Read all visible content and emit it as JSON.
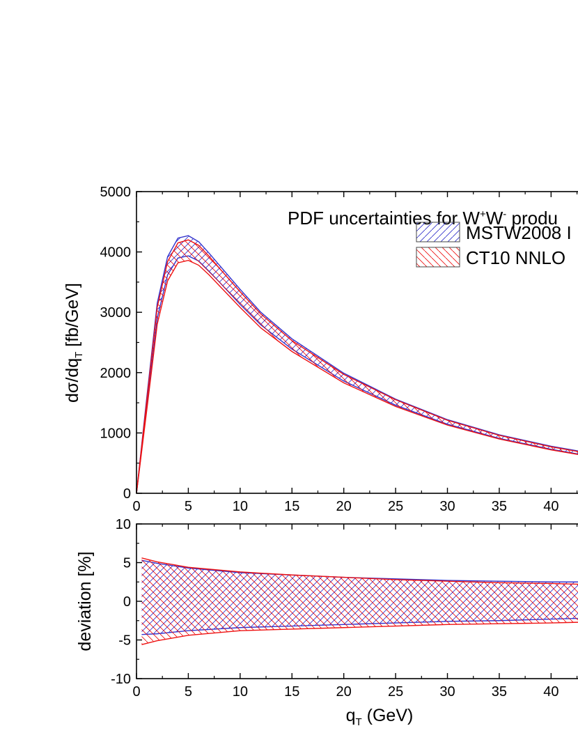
{
  "chart_data": [
    {
      "type": "area",
      "panel": "top",
      "title_main": "PDF uncertainties for W",
      "title_sup1": "+",
      "title_mid": "W",
      "title_sup2": "-",
      "title_tail": " produ",
      "ylabel_pre": "dσ/dq",
      "ylabel_sub": "T",
      "ylabel_post": " [fb/GeV]",
      "xlim": [
        0,
        43
      ],
      "ylim": [
        0,
        5000
      ],
      "x_ticks": [
        "0",
        "5",
        "10",
        "15",
        "20",
        "25",
        "30",
        "35",
        "40"
      ],
      "y_ticks": [
        "0",
        "1000",
        "2000",
        "3000",
        "4000",
        "5000"
      ],
      "legend": [
        {
          "label": "MSTW2008 I",
          "color": "#3333cc",
          "hatch": "forward"
        },
        {
          "label": "CT10 NNLO",
          "color": "#ee1111",
          "hatch": "backward"
        }
      ],
      "series": [
        {
          "name": "MSTW2008 I",
          "x": [
            0,
            1,
            2,
            3,
            4,
            5,
            6,
            7,
            8,
            10,
            12,
            15,
            20,
            25,
            30,
            35,
            40,
            43
          ],
          "upper": [
            0,
            1600,
            3150,
            3920,
            4230,
            4270,
            4170,
            3980,
            3780,
            3380,
            3000,
            2560,
            1990,
            1560,
            1220,
            970,
            780,
            690
          ],
          "lower": [
            0,
            1450,
            2900,
            3620,
            3900,
            3935,
            3850,
            3680,
            3500,
            3130,
            2790,
            2390,
            1860,
            1460,
            1145,
            910,
            730,
            640
          ]
        },
        {
          "name": "CT10 NNLO",
          "x": [
            0,
            1,
            2,
            3,
            4,
            5,
            6,
            7,
            8,
            10,
            12,
            15,
            20,
            25,
            30,
            35,
            40,
            43
          ],
          "upper": [
            0,
            1550,
            3080,
            3840,
            4150,
            4200,
            4110,
            3930,
            3730,
            3340,
            2970,
            2530,
            1970,
            1550,
            1210,
            960,
            770,
            680
          ],
          "lower": [
            0,
            1390,
            2800,
            3520,
            3820,
            3860,
            3780,
            3620,
            3440,
            3080,
            2740,
            2350,
            1830,
            1440,
            1130,
            900,
            720,
            632
          ]
        }
      ]
    },
    {
      "type": "area",
      "panel": "bottom",
      "ylabel": "deviation [%]",
      "xlabel_pre": "q",
      "xlabel_sub": "T",
      "xlabel_post": " (GeV)",
      "xlim": [
        0,
        43
      ],
      "ylim": [
        -10,
        10
      ],
      "x_ticks": [
        "0",
        "5",
        "10",
        "15",
        "20",
        "25",
        "30",
        "35",
        "40"
      ],
      "y_ticks": [
        "-10",
        "-5",
        "0",
        "5",
        "10"
      ],
      "series": [
        {
          "name": "MSTW2008 I",
          "x": [
            0.5,
            2,
            5,
            10,
            15,
            20,
            25,
            30,
            35,
            40,
            43
          ],
          "upper": [
            5.3,
            4.9,
            4.3,
            3.7,
            3.4,
            3.1,
            2.9,
            2.7,
            2.6,
            2.5,
            2.5
          ],
          "lower": [
            -4.3,
            -4.2,
            -3.8,
            -3.4,
            -3.2,
            -3.0,
            -2.8,
            -2.6,
            -2.5,
            -2.3,
            -2.2
          ]
        },
        {
          "name": "CT10 NNLO",
          "x": [
            0.5,
            2,
            5,
            10,
            15,
            20,
            25,
            30,
            35,
            40,
            43
          ],
          "upper": [
            5.6,
            5.1,
            4.4,
            3.8,
            3.4,
            3.1,
            2.8,
            2.6,
            2.4,
            2.3,
            2.2
          ],
          "lower": [
            -5.6,
            -5.1,
            -4.4,
            -3.8,
            -3.6,
            -3.4,
            -3.2,
            -3.0,
            -2.9,
            -2.8,
            -2.7
          ]
        }
      ]
    }
  ]
}
